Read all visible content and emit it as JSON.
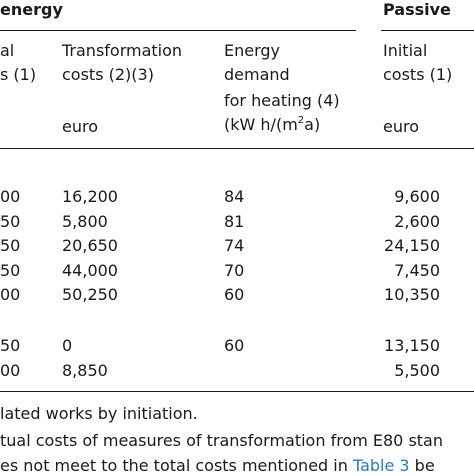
{
  "header": {
    "group_energy": "energy",
    "group_passive": "Passive",
    "col_initial_1": [
      "al",
      "s (1)"
    ],
    "col_transformation": [
      "Transformation",
      "costs (2)(3)"
    ],
    "col_energy_demand": [
      "Energy",
      "demand",
      "for heating (4)"
    ],
    "col_initial_2": [
      "Initial",
      "costs (1)"
    ],
    "unit_transformation": "euro",
    "unit_energy_pre": "(kW h/(m",
    "unit_energy_sup": "2",
    "unit_energy_post": "a)",
    "unit_initial_2": "euro"
  },
  "rows": [
    {
      "c1": "00",
      "c2": "16,200",
      "c3": "84",
      "c4": "9,600"
    },
    {
      "c1": "50",
      "c2": "5,800",
      "c3": "81",
      "c4": "2,600"
    },
    {
      "c1": "50",
      "c2": "20,650",
      "c3": "74",
      "c4": "24,150"
    },
    {
      "c1": "50",
      "c2": "44,000",
      "c3": "70",
      "c4": "7,450"
    },
    {
      "c1": "00",
      "c2": "50,250",
      "c3": "60",
      "c4": "10,350"
    },
    {
      "c1": "50",
      "c2": "0",
      "c3": "60",
      "c4": "13,150"
    },
    {
      "c1": "00",
      "c2": "8,850",
      "c3": "",
      "c4": "5,500"
    }
  ],
  "footnotes": {
    "note1": "lated works by initiation.",
    "note2": "tual costs of measures of transformation from E80 stan",
    "note3_pre": "es not meet to the total costs mentioned in ",
    "note3_link": "Table 3",
    "note3_post": " be"
  }
}
